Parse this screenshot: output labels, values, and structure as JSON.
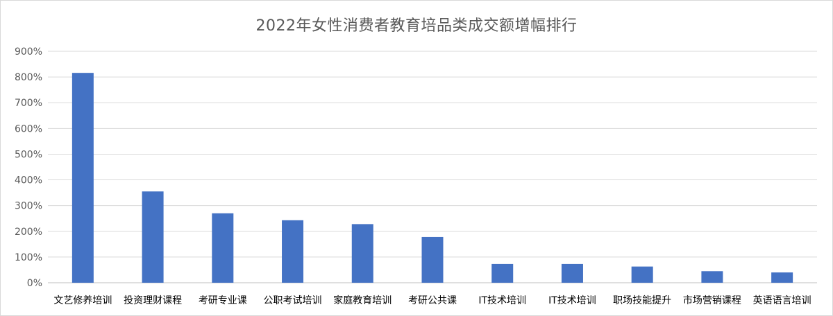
{
  "chart_data": {
    "type": "bar",
    "title": "2022年女性消费者教育培品类成交额增幅排行",
    "categories": [
      "文艺修养培训",
      "投资理财课程",
      "考研专业课",
      "公职考试培训",
      "家庭教育培训",
      "考研公共课",
      "IT技术培训",
      "IT技术培训",
      "职场技能提升",
      "市场营销课程",
      "英语语言培训"
    ],
    "values": [
      816,
      355,
      270,
      243,
      228,
      178,
      73,
      73,
      63,
      45,
      40
    ],
    "y_ticks": [
      "0%",
      "100%",
      "200%",
      "300%",
      "400%",
      "500%",
      "600%",
      "700%",
      "800%",
      "900%"
    ],
    "ylim": [
      0,
      900
    ],
    "grid": true,
    "bar_color": "#4472C4"
  }
}
